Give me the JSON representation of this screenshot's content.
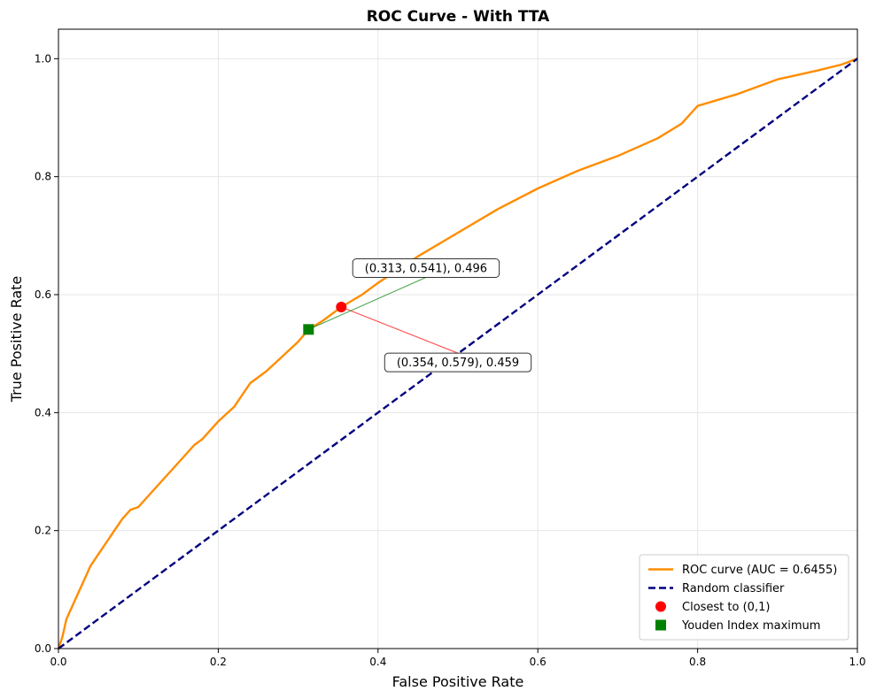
{
  "chart_data": {
    "type": "line",
    "title": "ROC Curve - With TTA",
    "xlabel": "False Positive Rate",
    "ylabel": "True Positive Rate",
    "xlim": [
      0.0,
      1.0
    ],
    "ylim": [
      0.0,
      1.05
    ],
    "x_ticks": [
      "0.0",
      "0.2",
      "0.4",
      "0.6",
      "0.8",
      "1.0"
    ],
    "y_ticks": [
      "0.0",
      "0.2",
      "0.4",
      "0.6",
      "0.8",
      "1.0"
    ],
    "grid": true,
    "legend_position": "lower-right",
    "series": [
      {
        "name": "ROC curve (AUC = 0.6455)",
        "color": "#ff8c00",
        "style": "solid",
        "x": [
          0.0,
          0.005,
          0.01,
          0.02,
          0.03,
          0.04,
          0.05,
          0.06,
          0.07,
          0.08,
          0.09,
          0.1,
          0.12,
          0.14,
          0.16,
          0.17,
          0.18,
          0.2,
          0.22,
          0.24,
          0.26,
          0.28,
          0.3,
          0.313,
          0.33,
          0.354,
          0.38,
          0.4,
          0.45,
          0.5,
          0.55,
          0.6,
          0.65,
          0.7,
          0.75,
          0.78,
          0.8,
          0.85,
          0.9,
          0.95,
          0.98,
          1.0
        ],
        "y": [
          0.0,
          0.02,
          0.05,
          0.08,
          0.11,
          0.14,
          0.16,
          0.18,
          0.2,
          0.22,
          0.235,
          0.24,
          0.27,
          0.3,
          0.33,
          0.345,
          0.355,
          0.385,
          0.41,
          0.45,
          0.47,
          0.495,
          0.52,
          0.541,
          0.555,
          0.579,
          0.6,
          0.62,
          0.665,
          0.705,
          0.745,
          0.78,
          0.81,
          0.835,
          0.865,
          0.89,
          0.92,
          0.94,
          0.965,
          0.98,
          0.99,
          1.0
        ]
      },
      {
        "name": "Random classifier",
        "color": "#000080",
        "style": "dashed",
        "x": [
          0.0,
          1.0
        ],
        "y": [
          0.0,
          1.0
        ]
      }
    ],
    "points": [
      {
        "name": "Closest to (0,1)",
        "color": "#ff0000",
        "marker": "circle",
        "x": 0.354,
        "y": 0.579,
        "label": "(0.354, 0.579), 0.459",
        "label_x": 0.5,
        "label_y": 0.485
      },
      {
        "name": "Youden Index maximum",
        "color": "#008000",
        "marker": "square",
        "x": 0.313,
        "y": 0.541,
        "label": "(0.313, 0.541), 0.496",
        "label_x": 0.46,
        "label_y": 0.645
      }
    ]
  }
}
